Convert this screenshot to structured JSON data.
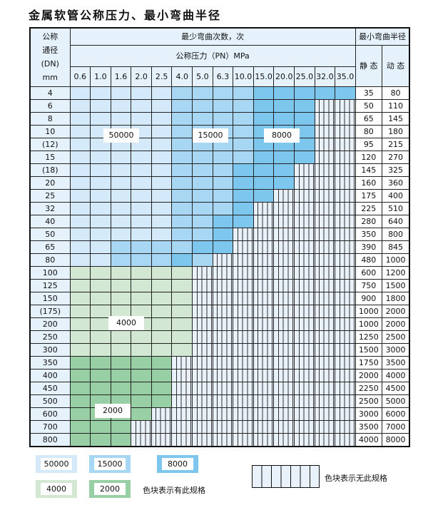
{
  "title": "金属软管公称压力、最小弯曲半径",
  "table": {
    "dn_header": [
      "公称",
      "通径",
      "(DN)",
      "mm"
    ],
    "cycles_header": "最少弯曲次数，次",
    "pressure_header": "公称压力（PN）MPa",
    "radius_header": "最小弯曲半径",
    "static_header": "静 态",
    "dynamic_header": "动 态",
    "pressures": [
      "0.6",
      "1.0",
      "1.6",
      "2.0",
      "2.5",
      "4.0",
      "5.0",
      "6.3",
      "10.0",
      "15.0",
      "20.0",
      "25.0",
      "32.0",
      "35.0"
    ],
    "rows": [
      {
        "dn": "4",
        "static": "35",
        "dynamic": "80",
        "cells": "AAAAABBBBCCCCC"
      },
      {
        "dn": "6",
        "static": "50",
        "dynamic": "110",
        "cells": "AAAAABBBBCCCNN"
      },
      {
        "dn": "8",
        "static": "65",
        "dynamic": "145",
        "cells": "AAAAABBBBCCCNN"
      },
      {
        "dn": "10",
        "static": "80",
        "dynamic": "180",
        "cells": "AAAAABBBBCCCNN"
      },
      {
        "dn": "(12)",
        "static": "95",
        "dynamic": "215",
        "cells": "AAAAABBBBCCCNN"
      },
      {
        "dn": "15",
        "static": "120",
        "dynamic": "270",
        "cells": "AAAAABBBBCCCNN"
      },
      {
        "dn": "(18)",
        "static": "145",
        "dynamic": "325",
        "cells": "AAAAABBBCCCNNN"
      },
      {
        "dn": "20",
        "static": "160",
        "dynamic": "360",
        "cells": "AAAAABBBCCCNNN"
      },
      {
        "dn": "25",
        "static": "175",
        "dynamic": "400",
        "cells": "AAAAABBBCCNNNN"
      },
      {
        "dn": "32",
        "static": "225",
        "dynamic": "510",
        "cells": "AAAAABBBCNNNNN"
      },
      {
        "dn": "40",
        "static": "280",
        "dynamic": "640",
        "cells": "AAAAABBCCNNNNN"
      },
      {
        "dn": "50",
        "static": "350",
        "dynamic": "800",
        "cells": "AAAAABBCNNNNNN"
      },
      {
        "dn": "65",
        "static": "390",
        "dynamic": "845",
        "cells": "AABBBBCCNNNNNN"
      },
      {
        "dn": "80",
        "static": "480",
        "dynamic": "1000",
        "cells": "AABBBCBNNNNNNN"
      },
      {
        "dn": "100",
        "static": "600",
        "dynamic": "1200",
        "cells": "DDDDDDNNNNNNNN"
      },
      {
        "dn": "125",
        "static": "750",
        "dynamic": "1500",
        "cells": "DDDDDDNNNNNNNN"
      },
      {
        "dn": "150",
        "static": "900",
        "dynamic": "1800",
        "cells": "DDDDDDNNNNNNNN"
      },
      {
        "dn": "(175)",
        "static": "1000",
        "dynamic": "2000",
        "cells": "DDDDDDNNNNNNNN"
      },
      {
        "dn": "200",
        "static": "1000",
        "dynamic": "2000",
        "cells": "DDDDDDNNNNNNNN"
      },
      {
        "dn": "250",
        "static": "1250",
        "dynamic": "2500",
        "cells": "DDDDDDNNNNNNNN"
      },
      {
        "dn": "300",
        "static": "1500",
        "dynamic": "3000",
        "cells": "DDDDDDNNNNNNNN"
      },
      {
        "dn": "350",
        "static": "1750",
        "dynamic": "3500",
        "cells": "EEEEENNNNNNNNN"
      },
      {
        "dn": "400",
        "static": "2000",
        "dynamic": "4000",
        "cells": "EEEEENNNNNNNNN"
      },
      {
        "dn": "450",
        "static": "2250",
        "dynamic": "4500",
        "cells": "EEEEENNNNNNNNN"
      },
      {
        "dn": "500",
        "static": "2500",
        "dynamic": "5000",
        "cells": "EEEEENNNNNNNNN"
      },
      {
        "dn": "600",
        "static": "3000",
        "dynamic": "6000",
        "cells": "EEEENNNNNNNNNN"
      },
      {
        "dn": "700",
        "static": "3500",
        "dynamic": "7000",
        "cells": "EEENNNNNNNNNNN"
      },
      {
        "dn": "800",
        "static": "4000",
        "dynamic": "8000",
        "cells": "EEENNNNNNNNNNN"
      }
    ],
    "region_labels": {
      "A": "50000",
      "B": "15000",
      "C": "8000",
      "D": "4000",
      "E": "2000"
    }
  },
  "colors": {
    "A": "#d4e9f9",
    "B": "#a8d7f3",
    "C": "#7dc7ef",
    "D": "#d3e8d3",
    "E": "#99cfa5",
    "N": "#e9f2fb"
  },
  "legend": {
    "items": [
      "50000",
      "15000",
      "8000",
      "4000",
      "2000"
    ],
    "available_text": "色块表示有此规格",
    "unavailable_text": "色块表示无此规格"
  }
}
